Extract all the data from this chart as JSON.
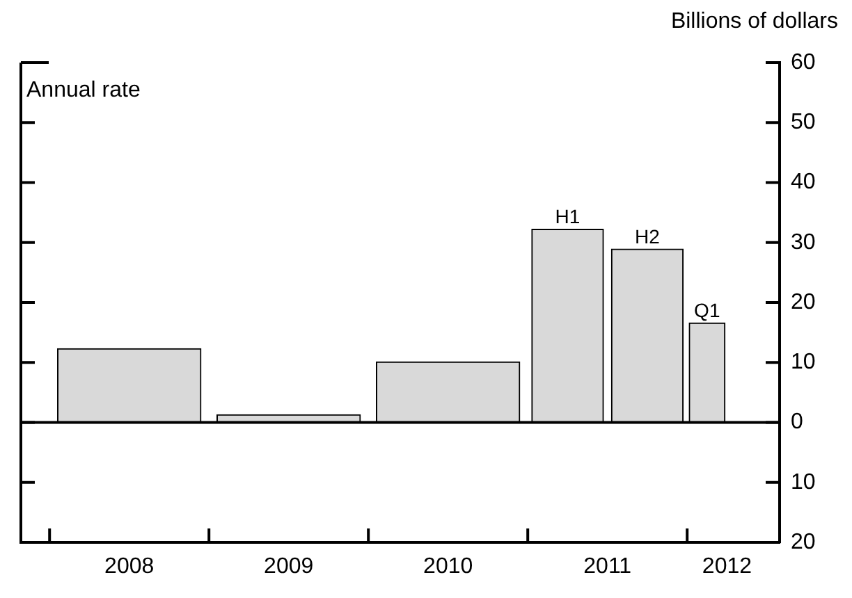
{
  "chart_data": {
    "type": "bar",
    "ylabel": "Billions of dollars",
    "x": [
      2008.5,
      2009.5,
      2010.5,
      2011.25,
      2011.75,
      2012.125
    ],
    "values": [
      12.3,
      1.3,
      10.1,
      32.2,
      28.9,
      16.6
    ],
    "color": "#d9d9d9",
    "xlim": [
      2007.82,
      2012.58
    ],
    "xticks": [
      {
        "value": 2008,
        "label": null
      },
      {
        "value": 2008.5,
        "label": "2008"
      },
      {
        "value": 2009,
        "label": null
      },
      {
        "value": 2009.5,
        "label": "2009"
      },
      {
        "value": 2010,
        "label": null
      },
      {
        "value": 2010.5,
        "label": "2010"
      },
      {
        "value": 2011,
        "label": null
      },
      {
        "value": 2011.5,
        "label": "2011"
      },
      {
        "value": 2012,
        "label": null
      },
      {
        "value": 2012.25,
        "label": "2012"
      }
    ],
    "ylim": [
      -20,
      60
    ],
    "yticks": [
      {
        "value": -20,
        "label": "20"
      },
      {
        "value": -10,
        "label": "10"
      },
      0,
      10,
      20,
      30,
      40,
      50,
      60
    ],
    "ref_lines": [
      {
        "axis": "y",
        "value": 0,
        "color": "#000000"
      }
    ],
    "annotations": [
      "Annual rate",
      {
        "text": "H1",
        "x": 2011.25,
        "y": 32.2
      },
      {
        "text": "H2",
        "x": 2011.75,
        "y": 28.9
      },
      {
        "text": "Q1",
        "x": 2012.125,
        "y": 16.6
      }
    ],
    "grid": false,
    "legend": false
  }
}
